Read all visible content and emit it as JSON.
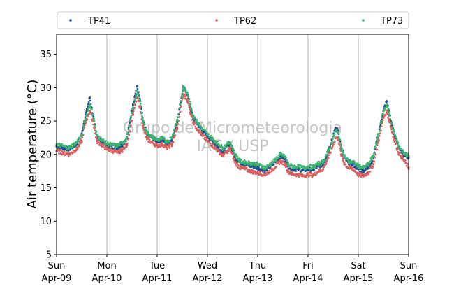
{
  "chart_data": {
    "type": "scatter",
    "title": "",
    "xlabel": "",
    "ylabel": "Air temperature (°C)",
    "ylim": [
      5,
      38
    ],
    "xlim": [
      0,
      7
    ],
    "x_unit": "days since Sun Apr-09 00:00",
    "yticks": [
      5,
      10,
      15,
      20,
      25,
      30,
      35
    ],
    "xticks": [
      {
        "day": 0,
        "weekday": "Sun",
        "date": "Apr-09"
      },
      {
        "day": 1,
        "weekday": "Mon",
        "date": "Apr-10"
      },
      {
        "day": 2,
        "weekday": "Tue",
        "date": "Apr-11"
      },
      {
        "day": 3,
        "weekday": "Wed",
        "date": "Apr-12"
      },
      {
        "day": 4,
        "weekday": "Thu",
        "date": "Apr-13"
      },
      {
        "day": 5,
        "weekday": "Fri",
        "date": "Apr-14"
      },
      {
        "day": 6,
        "weekday": "Sat",
        "date": "Apr-15"
      },
      {
        "day": 7,
        "weekday": "Sun",
        "date": "Apr-16"
      }
    ],
    "grid": "vertical at day boundaries",
    "legend_position": "top, above plot, horizontal",
    "watermark": [
      "Grupo de Micrometeorologia",
      "IAG / USP"
    ],
    "series": [
      {
        "name": "TP41",
        "color": "#1f4e8c",
        "x": [
          0.0,
          0.25,
          0.4,
          0.5,
          0.55,
          0.6,
          0.66,
          0.72,
          0.8,
          1.0,
          1.2,
          1.3,
          1.4,
          1.52,
          1.6,
          1.66,
          1.72,
          1.8,
          1.9,
          2.0,
          2.1,
          2.2,
          2.3,
          2.4,
          2.52,
          2.6,
          2.66,
          2.72,
          2.8,
          2.9,
          3.0,
          3.15,
          3.3,
          3.45,
          3.55,
          3.65,
          3.75,
          3.85,
          4.0,
          4.15,
          4.3,
          4.45,
          4.55,
          4.6,
          4.7,
          4.8,
          4.9,
          5.0,
          5.1,
          5.2,
          5.3,
          5.4,
          5.55,
          5.6,
          5.66,
          5.72,
          5.8,
          5.9,
          6.0,
          6.1,
          6.2,
          6.3,
          6.4,
          6.5,
          6.56,
          6.62,
          6.7,
          6.8,
          6.9,
          7.0
        ],
        "y": [
          21.2,
          20.8,
          21.5,
          23.0,
          25.0,
          26.5,
          28.5,
          26.0,
          22.5,
          21.3,
          21.0,
          21.4,
          22.5,
          27.5,
          30.2,
          28.0,
          25.0,
          23.0,
          22.5,
          22.0,
          22.2,
          21.6,
          22.3,
          25.0,
          30.0,
          29.0,
          27.0,
          25.5,
          24.5,
          23.5,
          22.8,
          21.5,
          20.3,
          21.5,
          19.5,
          18.8,
          18.5,
          18.3,
          18.0,
          17.6,
          18.5,
          19.7,
          19.3,
          18.2,
          17.8,
          17.8,
          17.6,
          17.8,
          17.7,
          18.2,
          18.5,
          20.5,
          24.0,
          23.5,
          21.0,
          19.5,
          18.8,
          18.5,
          17.8,
          17.5,
          18.0,
          19.5,
          23.0,
          26.5,
          28.0,
          26.0,
          23.5,
          21.0,
          20.0,
          19.5
        ]
      },
      {
        "name": "TP62",
        "color": "#d95f5f",
        "x": [
          0.0,
          0.25,
          0.4,
          0.5,
          0.55,
          0.6,
          0.66,
          0.72,
          0.8,
          1.0,
          1.2,
          1.3,
          1.4,
          1.52,
          1.6,
          1.66,
          1.72,
          1.8,
          1.9,
          2.0,
          2.1,
          2.2,
          2.3,
          2.4,
          2.52,
          2.6,
          2.66,
          2.72,
          2.8,
          2.9,
          3.0,
          3.15,
          3.3,
          3.45,
          3.55,
          3.65,
          3.75,
          3.85,
          4.0,
          4.15,
          4.3,
          4.45,
          4.55,
          4.6,
          4.7,
          4.8,
          4.9,
          5.0,
          5.1,
          5.2,
          5.3,
          5.4,
          5.55,
          5.6,
          5.66,
          5.72,
          5.8,
          5.9,
          6.0,
          6.1,
          6.2,
          6.3,
          6.4,
          6.5,
          6.56,
          6.62,
          6.7,
          6.8,
          6.9,
          7.0
        ],
        "y": [
          20.5,
          20.0,
          20.8,
          22.0,
          24.0,
          25.3,
          26.5,
          25.0,
          22.0,
          20.8,
          20.3,
          20.6,
          21.5,
          26.0,
          28.5,
          27.0,
          24.0,
          22.3,
          21.8,
          21.3,
          21.5,
          21.0,
          21.5,
          24.0,
          29.0,
          28.2,
          26.3,
          24.8,
          23.8,
          22.8,
          22.0,
          21.0,
          19.8,
          20.8,
          18.8,
          18.0,
          17.8,
          17.5,
          17.2,
          17.0,
          17.8,
          19.0,
          18.5,
          17.5,
          17.0,
          17.0,
          16.8,
          17.0,
          16.9,
          17.4,
          17.8,
          19.5,
          22.5,
          22.3,
          20.0,
          18.7,
          18.0,
          17.8,
          17.0,
          16.8,
          17.3,
          18.5,
          22.0,
          25.5,
          26.5,
          25.0,
          22.5,
          20.3,
          19.2,
          18.0
        ]
      },
      {
        "name": "TP73",
        "color": "#3cb371",
        "x": [
          0.0,
          0.25,
          0.4,
          0.5,
          0.55,
          0.6,
          0.66,
          0.72,
          0.8,
          1.0,
          1.2,
          1.3,
          1.4,
          1.52,
          1.6,
          1.66,
          1.72,
          1.8,
          1.9,
          2.0,
          2.1,
          2.2,
          2.3,
          2.4,
          2.52,
          2.6,
          2.66,
          2.72,
          2.8,
          2.9,
          3.0,
          3.15,
          3.3,
          3.45,
          3.55,
          3.65,
          3.75,
          3.85,
          4.0,
          4.15,
          4.3,
          4.45,
          4.55,
          4.6,
          4.7,
          4.8,
          4.9,
          5.0,
          5.1,
          5.2,
          5.3,
          5.4,
          5.55,
          5.6,
          5.66,
          5.72,
          5.8,
          5.9,
          6.0,
          6.1,
          6.2,
          6.3,
          6.4,
          6.5,
          6.56,
          6.62,
          6.7,
          6.8,
          6.9,
          7.0
        ],
        "y": [
          21.5,
          21.0,
          21.8,
          22.8,
          24.8,
          26.0,
          27.5,
          26.0,
          22.8,
          21.6,
          21.3,
          21.7,
          22.6,
          27.0,
          29.5,
          28.0,
          25.0,
          23.2,
          22.6,
          22.2,
          22.4,
          21.9,
          22.6,
          25.2,
          30.0,
          29.3,
          27.5,
          25.8,
          24.8,
          23.8,
          23.0,
          22.0,
          21.0,
          21.8,
          20.0,
          19.0,
          18.8,
          18.7,
          18.5,
          18.0,
          18.8,
          20.0,
          19.6,
          18.5,
          18.2,
          18.2,
          18.0,
          18.2,
          18.1,
          18.6,
          18.9,
          20.5,
          23.5,
          23.2,
          21.2,
          19.8,
          19.0,
          18.8,
          18.3,
          18.0,
          18.5,
          19.8,
          23.0,
          26.5,
          27.5,
          26.0,
          23.5,
          21.3,
          20.3,
          19.8
        ]
      }
    ]
  }
}
